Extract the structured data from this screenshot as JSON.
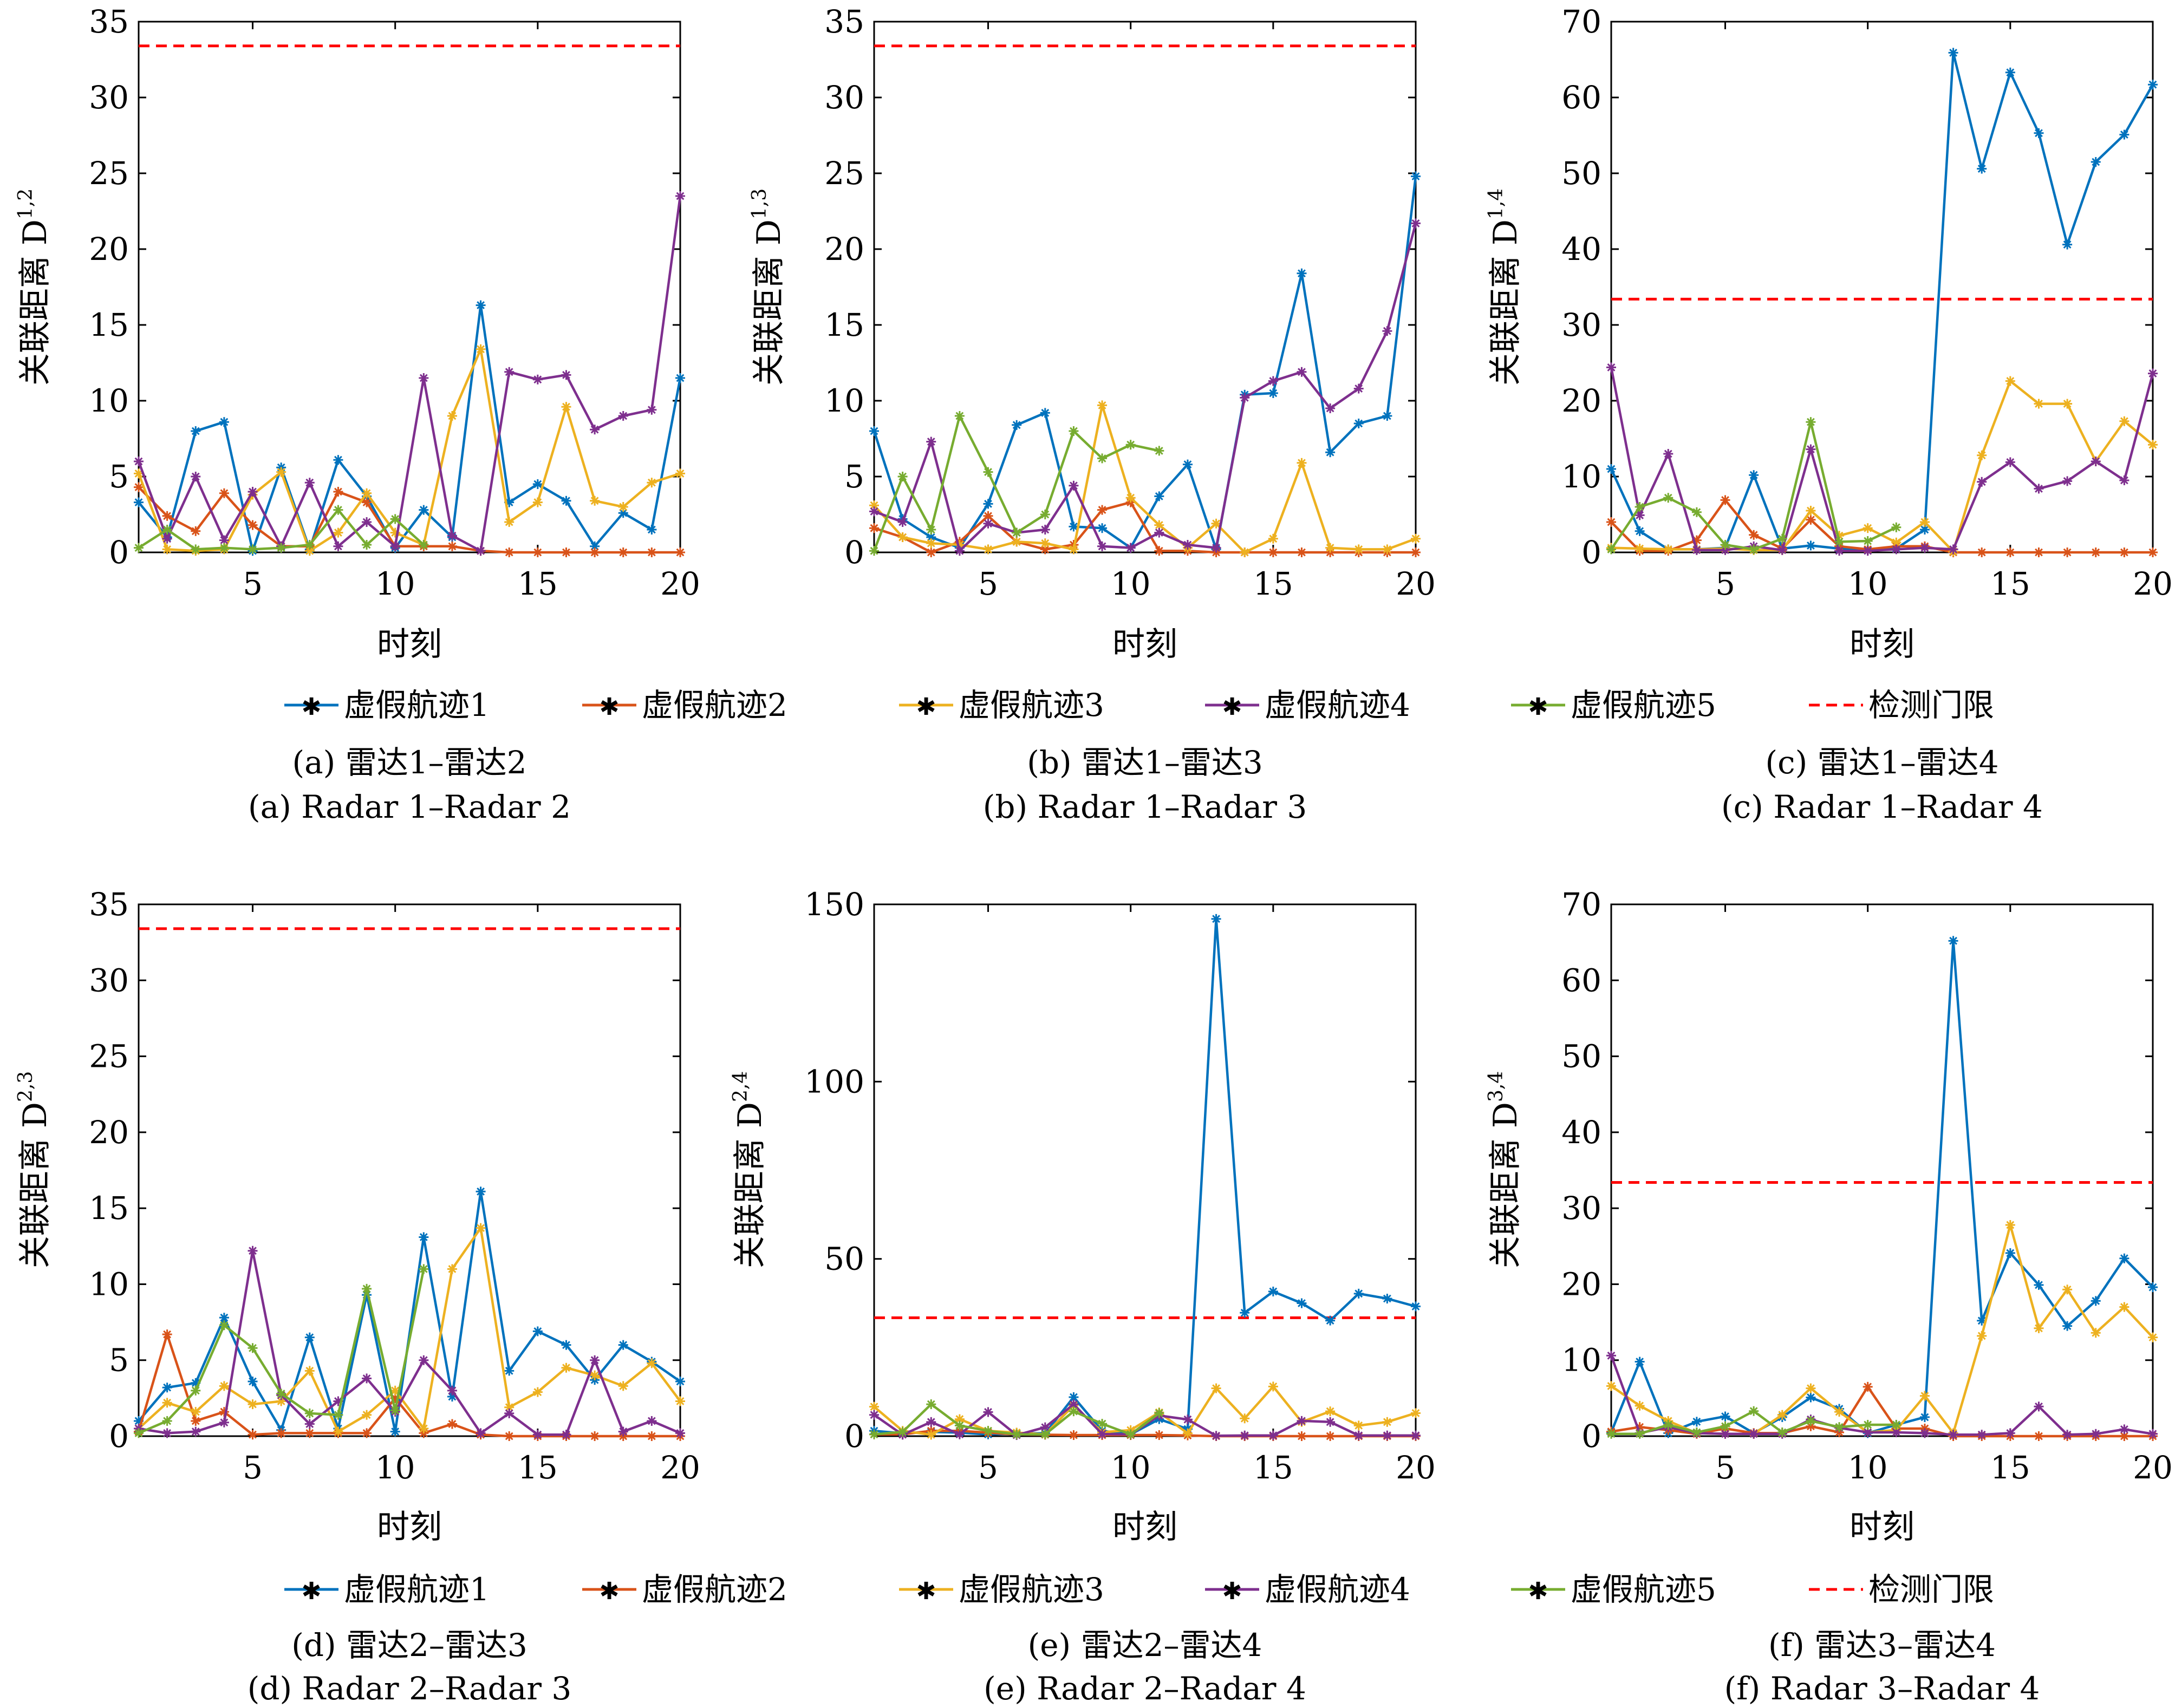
{
  "chart_data": [
    {
      "type": "line",
      "caption_cn": "(a) 雷达1–雷达2",
      "caption_en": "(a) Radar 1–Radar 2",
      "xlabel": "时刻",
      "ylabel": "关联距离 D",
      "ylabel_sup": "1,2",
      "xlim": [
        1,
        20
      ],
      "ylim": [
        0,
        35
      ],
      "xticks": [
        5,
        10,
        15,
        20
      ],
      "yticks": [
        0,
        5,
        10,
        15,
        20,
        25,
        30,
        35
      ],
      "threshold": 33.4,
      "x": [
        1,
        2,
        3,
        4,
        5,
        6,
        7,
        8,
        9,
        10,
        11,
        12,
        13,
        14,
        15,
        16,
        17,
        18,
        19,
        20
      ],
      "series": [
        {
          "name": "虚假航迹1",
          "values": [
            3.3,
            1.0,
            8.0,
            8.6,
            0.1,
            5.6,
            0.2,
            6.1,
            3.7,
            0.3,
            2.8,
            1.0,
            16.3,
            3.3,
            4.5,
            3.4,
            0.4,
            2.6,
            1.5,
            11.5
          ]
        },
        {
          "name": "虚假航迹2",
          "values": [
            4.3,
            2.4,
            1.4,
            3.9,
            1.8,
            0.4,
            0.4,
            4.0,
            3.3,
            0.4,
            0.4,
            0.4,
            0.1,
            0.0,
            0.0,
            0.0,
            0.0,
            0.0,
            0.0,
            0.0
          ]
        },
        {
          "name": "虚假航迹3",
          "values": [
            5.2,
            0.2,
            0.1,
            0.2,
            3.8,
            5.3,
            0.1,
            1.3,
            3.9,
            1.3,
            0.5,
            9.0,
            13.4,
            2.0,
            3.3,
            9.6,
            3.4,
            3.0,
            4.6,
            5.2
          ]
        },
        {
          "name": "虚假航迹4",
          "values": [
            6.0,
            0.9,
            5.0,
            0.8,
            4.0,
            0.4,
            4.6,
            0.4,
            2.0,
            0.4,
            11.5,
            1.1,
            0.1,
            11.9,
            11.4,
            11.7,
            8.1,
            9.0,
            9.4,
            23.5
          ]
        },
        {
          "name": "虚假航迹5",
          "values": [
            0.3,
            1.5,
            0.2,
            0.3,
            0.2,
            0.3,
            0.5,
            2.8,
            0.5,
            2.2,
            0.5,
            null,
            null,
            null,
            null,
            null,
            null,
            null,
            null,
            null
          ]
        }
      ]
    },
    {
      "type": "line",
      "caption_cn": "(b) 雷达1–雷达3",
      "caption_en": "(b) Radar 1–Radar 3",
      "xlabel": "时刻",
      "ylabel": "关联距离 D",
      "ylabel_sup": "1,3",
      "xlim": [
        1,
        20
      ],
      "ylim": [
        0,
        35
      ],
      "xticks": [
        5,
        10,
        15,
        20
      ],
      "yticks": [
        0,
        5,
        10,
        15,
        20,
        25,
        30,
        35
      ],
      "threshold": 33.4,
      "x": [
        1,
        2,
        3,
        4,
        5,
        6,
        7,
        8,
        9,
        10,
        11,
        12,
        13,
        14,
        15,
        16,
        17,
        18,
        19,
        20
      ],
      "series": [
        {
          "name": "虚假航迹1",
          "values": [
            8.0,
            2.2,
            1.0,
            0.3,
            3.2,
            8.4,
            9.2,
            1.7,
            1.6,
            0.3,
            3.7,
            5.8,
            0.2,
            10.4,
            10.5,
            18.4,
            6.6,
            8.5,
            9.0,
            24.8
          ]
        },
        {
          "name": "虚假航迹2",
          "values": [
            1.6,
            1.0,
            0.0,
            0.7,
            2.4,
            0.7,
            0.2,
            0.5,
            2.8,
            3.3,
            0.1,
            0.1,
            0.0,
            0.0,
            0.0,
            0.0,
            0.0,
            0.0,
            0.0,
            0.0
          ]
        },
        {
          "name": "虚假航迹3",
          "values": [
            3.1,
            1.0,
            0.6,
            0.5,
            0.2,
            0.7,
            0.6,
            0.2,
            9.7,
            3.6,
            1.8,
            0.3,
            1.9,
            0.0,
            0.9,
            5.9,
            0.3,
            0.2,
            0.2,
            0.9
          ]
        },
        {
          "name": "虚假航迹4",
          "values": [
            2.7,
            2.0,
            7.3,
            0.1,
            1.9,
            1.3,
            1.5,
            4.4,
            0.4,
            0.3,
            1.3,
            0.5,
            0.3,
            10.2,
            11.3,
            11.9,
            9.5,
            10.8,
            14.6,
            21.7
          ]
        },
        {
          "name": "虚假航迹5",
          "values": [
            0.1,
            5.0,
            1.5,
            9.0,
            5.3,
            1.3,
            2.5,
            8.0,
            6.2,
            7.1,
            6.7,
            null,
            null,
            null,
            null,
            null,
            null,
            null,
            null,
            null
          ]
        }
      ]
    },
    {
      "type": "line",
      "caption_cn": "(c) 雷达1–雷达4",
      "caption_en": "(c) Radar 1–Radar 4",
      "xlabel": "时刻",
      "ylabel": "关联距离 D",
      "ylabel_sup": "1,4",
      "xlim": [
        1,
        20
      ],
      "ylim": [
        0,
        70
      ],
      "xticks": [
        5,
        10,
        15,
        20
      ],
      "yticks": [
        0,
        10,
        20,
        30,
        40,
        50,
        60,
        70
      ],
      "threshold": 33.4,
      "x": [
        1,
        2,
        3,
        4,
        5,
        6,
        7,
        8,
        9,
        10,
        11,
        12,
        13,
        14,
        15,
        16,
        17,
        18,
        19,
        20
      ],
      "series": [
        {
          "name": "虚假航迹1",
          "values": [
            11.0,
            2.8,
            0.4,
            0.4,
            0.6,
            10.2,
            0.5,
            0.9,
            0.5,
            0.3,
            0.5,
            3.0,
            65.9,
            50.6,
            63.3,
            55.3,
            40.6,
            51.5,
            55.1,
            61.7
          ]
        },
        {
          "name": "虚假航迹2",
          "values": [
            4.0,
            0.2,
            0.2,
            1.6,
            6.9,
            2.3,
            0.5,
            4.3,
            0.8,
            0.4,
            0.8,
            0.8,
            0.0,
            0.0,
            0.0,
            0.0,
            0.0,
            0.0,
            0.0,
            0.0
          ]
        },
        {
          "name": "虚假航迹3",
          "values": [
            0.6,
            0.5,
            0.4,
            0.4,
            0.5,
            0.3,
            0.3,
            5.5,
            2.2,
            3.2,
            1.3,
            4.0,
            0.1,
            12.8,
            22.6,
            19.6,
            19.6,
            12.0,
            17.3,
            14.2
          ]
        },
        {
          "name": "虚假航迹4",
          "values": [
            24.4,
            4.9,
            13.0,
            0.3,
            0.3,
            0.8,
            0.3,
            13.6,
            0.2,
            0.2,
            0.4,
            0.6,
            0.4,
            9.3,
            11.9,
            8.4,
            9.4,
            12.0,
            9.5,
            23.6
          ]
        },
        {
          "name": "虚假航迹5",
          "values": [
            0.4,
            6.0,
            7.2,
            5.3,
            1.0,
            0.4,
            1.8,
            17.2,
            1.4,
            1.5,
            3.3,
            null,
            null,
            null,
            null,
            null,
            null,
            null,
            null,
            null
          ]
        }
      ]
    },
    {
      "type": "line",
      "caption_cn": "(d) 雷达2–雷达3",
      "caption_en": "(d) Radar 2–Radar 3",
      "xlabel": "时刻",
      "ylabel": "关联距离 D",
      "ylabel_sup": "2,3",
      "xlim": [
        1,
        20
      ],
      "ylim": [
        0,
        35
      ],
      "xticks": [
        5,
        10,
        15,
        20
      ],
      "yticks": [
        0,
        5,
        10,
        15,
        20,
        25,
        30,
        35
      ],
      "threshold": 33.4,
      "x": [
        1,
        2,
        3,
        4,
        5,
        6,
        7,
        8,
        9,
        10,
        11,
        12,
        13,
        14,
        15,
        16,
        17,
        18,
        19,
        20
      ],
      "series": [
        {
          "name": "虚假航迹1",
          "values": [
            1.0,
            3.2,
            3.5,
            7.8,
            3.6,
            0.4,
            6.5,
            0.5,
            9.3,
            0.3,
            13.1,
            2.6,
            16.1,
            4.3,
            6.9,
            6.0,
            3.7,
            6.0,
            4.9,
            3.6
          ]
        },
        {
          "name": "虚假航迹2",
          "values": [
            0.3,
            6.7,
            1.0,
            1.6,
            0.1,
            0.2,
            0.2,
            0.2,
            0.2,
            2.5,
            0.2,
            0.8,
            0.1,
            0.0,
            0.0,
            0.0,
            0.0,
            0.0,
            0.0,
            0.0
          ]
        },
        {
          "name": "虚假航迹3",
          "values": [
            0.5,
            2.2,
            1.6,
            3.3,
            2.1,
            2.3,
            4.3,
            0.3,
            1.4,
            3.0,
            0.5,
            11.0,
            13.7,
            1.9,
            2.9,
            4.5,
            4.0,
            3.3,
            4.8,
            2.3
          ]
        },
        {
          "name": "虚假航迹4",
          "values": [
            0.5,
            0.2,
            0.3,
            0.9,
            12.2,
            2.7,
            0.8,
            2.3,
            3.8,
            1.6,
            5.0,
            3.0,
            0.2,
            1.5,
            0.1,
            0.1,
            5.0,
            0.3,
            1.0,
            0.2
          ]
        },
        {
          "name": "虚假航迹5",
          "values": [
            0.2,
            1.0,
            3.0,
            7.3,
            5.8,
            2.8,
            1.5,
            1.4,
            9.7,
            1.7,
            11.0,
            null,
            null,
            null,
            null,
            null,
            null,
            null,
            null,
            null
          ]
        }
      ]
    },
    {
      "type": "line",
      "caption_cn": "(e) 雷达2–雷达4",
      "caption_en": "(e) Radar 2–Radar 4",
      "xlabel": "时刻",
      "ylabel": "关联距离 D",
      "ylabel_sup": "2,4",
      "xlim": [
        1,
        20
      ],
      "ylim": [
        0,
        150
      ],
      "xticks": [
        5,
        10,
        15,
        20
      ],
      "yticks": [
        0,
        50,
        100,
        150
      ],
      "threshold": 33.4,
      "x": [
        1,
        2,
        3,
        4,
        5,
        6,
        7,
        8,
        9,
        10,
        11,
        12,
        13,
        14,
        15,
        16,
        17,
        18,
        19,
        20
      ],
      "series": [
        {
          "name": "虚假航迹1",
          "values": [
            1.5,
            0.8,
            1.2,
            1.0,
            0.5,
            0.8,
            0.8,
            11.0,
            1.5,
            0.5,
            4.8,
            2.0,
            145.9,
            34.8,
            40.8,
            37.5,
            32.6,
            40.2,
            38.8,
            36.6
          ]
        },
        {
          "name": "虚假航迹2",
          "values": [
            0.5,
            0.5,
            1.5,
            1.5,
            1.0,
            0.5,
            0.4,
            0.3,
            0.3,
            0.3,
            0.3,
            0.2,
            0.0,
            0.0,
            0.0,
            0.0,
            0.0,
            0.0,
            0.0,
            0.0
          ]
        },
        {
          "name": "虚假航迹3",
          "values": [
            8.3,
            1.5,
            0.4,
            4.8,
            1.5,
            1.0,
            0.5,
            8.7,
            1.1,
            1.7,
            6.7,
            0.8,
            13.5,
            5.0,
            14.0,
            4.0,
            7.0,
            3.0,
            4.0,
            6.5
          ]
        },
        {
          "name": "虚假航迹4",
          "values": [
            6.0,
            0.4,
            4.0,
            0.5,
            6.8,
            0.3,
            2.5,
            9.0,
            0.6,
            0.5,
            5.8,
            4.7,
            0.1,
            0.2,
            0.2,
            4.3,
            4.0,
            0.2,
            0.2,
            0.2
          ]
        },
        {
          "name": "虚假航迹5",
          "values": [
            0.5,
            1.2,
            9.0,
            3.0,
            1.5,
            0.5,
            0.5,
            7.0,
            3.5,
            0.5,
            6.5,
            null,
            null,
            null,
            null,
            null,
            null,
            null,
            null,
            null
          ]
        }
      ]
    },
    {
      "type": "line",
      "caption_cn": "(f) 雷达3–雷达4",
      "caption_en": "(f) Radar 3–Radar 4",
      "xlabel": "时刻",
      "ylabel": "关联距离 D",
      "ylabel_sup": "3,4",
      "xlim": [
        1,
        20
      ],
      "ylim": [
        0,
        70
      ],
      "xticks": [
        5,
        10,
        15,
        20
      ],
      "yticks": [
        0,
        10,
        20,
        30,
        40,
        50,
        60,
        70
      ],
      "threshold": 33.4,
      "x": [
        1,
        2,
        3,
        4,
        5,
        6,
        7,
        8,
        9,
        10,
        11,
        12,
        13,
        14,
        15,
        16,
        17,
        18,
        19,
        20
      ],
      "series": [
        {
          "name": "虚假航迹1",
          "values": [
            0.5,
            9.8,
            0.4,
            1.9,
            2.6,
            0.4,
            2.5,
            5.1,
            3.6,
            0.4,
            1.5,
            2.5,
            65.2,
            15.2,
            24.1,
            19.9,
            14.5,
            17.8,
            23.4,
            19.6
          ]
        },
        {
          "name": "虚假航迹2",
          "values": [
            0.6,
            1.2,
            0.8,
            0.3,
            1.0,
            0.4,
            0.4,
            1.3,
            0.5,
            6.5,
            1.0,
            1.0,
            0.0,
            0.0,
            0.0,
            0.0,
            0.0,
            0.0,
            0.0,
            0.0
          ]
        },
        {
          "name": "虚假航迹3",
          "values": [
            6.6,
            4.0,
            2.0,
            0.4,
            0.3,
            0.3,
            2.8,
            6.3,
            3.2,
            0.5,
            0.8,
            5.3,
            0.4,
            13.2,
            27.8,
            14.2,
            19.3,
            13.6,
            17.0,
            13.0
          ]
        },
        {
          "name": "虚假航迹4",
          "values": [
            10.6,
            0.4,
            1.2,
            0.4,
            0.3,
            0.3,
            0.3,
            2.2,
            1.1,
            0.5,
            0.5,
            0.4,
            0.2,
            0.2,
            0.4,
            3.9,
            0.2,
            0.3,
            0.9,
            0.3
          ]
        },
        {
          "name": "虚假航迹5",
          "values": [
            0.3,
            0.3,
            1.5,
            0.5,
            1.3,
            3.3,
            0.5,
            2.0,
            1.2,
            1.5,
            1.5,
            null,
            null,
            null,
            null,
            null,
            null,
            null,
            null,
            null
          ]
        }
      ]
    }
  ],
  "legend": {
    "items": [
      "虚假航迹1",
      "虚假航迹2",
      "虚假航迹3",
      "虚假航迹4",
      "虚假航迹5",
      "检测门限"
    ],
    "colors": [
      "#0072BD",
      "#D95319",
      "#EDB120",
      "#7E2F8E",
      "#77AC30",
      "#FF0000"
    ]
  }
}
